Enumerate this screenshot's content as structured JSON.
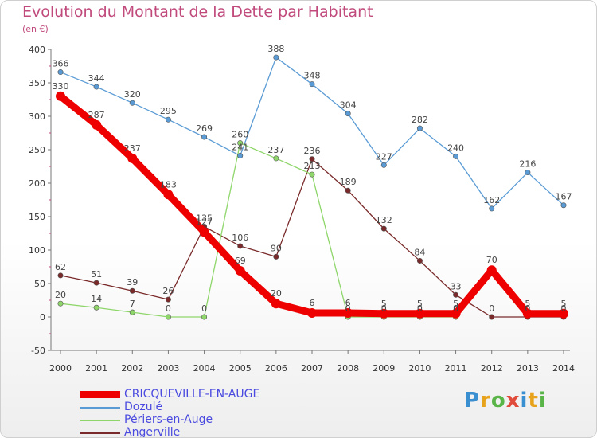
{
  "header": {
    "title": "Evolution du Montant de la Dette par Habitant",
    "subtitle": "(en €)"
  },
  "logo": {
    "text": "Proxiti",
    "colors": [
      "#3a8fd1",
      "#e8a31c",
      "#59b548",
      "#e14b3b",
      "#3a8fd1",
      "#e8a31c",
      "#59b548"
    ]
  },
  "chart_data": {
    "type": "line",
    "title": "Evolution du Montant de la Dette par Habitant",
    "subtitle": "(en €)",
    "x": [
      "2000",
      "2001",
      "2002",
      "2003",
      "2004",
      "2005",
      "2006",
      "2007",
      "2008",
      "2009",
      "2010",
      "2011",
      "2012",
      "2013",
      "2014"
    ],
    "yticks": [
      "-50",
      "0",
      "50",
      "100",
      "150",
      "200",
      "250",
      "300",
      "350",
      "400"
    ],
    "ylim": [
      -50,
      400
    ],
    "grid": false,
    "legend_position": "bottom-left",
    "series": [
      {
        "name": "CRICQUEVILLE-EN-AUGE",
        "color": "#ee0000",
        "values": [
          330,
          287,
          237,
          183,
          127,
          69,
          20,
          6,
          6,
          5,
          5,
          5,
          70,
          5,
          5
        ],
        "labels": [
          "330",
          "287",
          "237",
          "183",
          "127",
          "69",
          "20",
          "6",
          "6",
          "5",
          "5",
          "5",
          "70",
          "5",
          "5"
        ]
      },
      {
        "name": "Dozulé",
        "color": "#5a9bd5",
        "values": [
          366,
          344,
          320,
          295,
          269,
          241,
          388,
          348,
          304,
          227,
          282,
          240,
          162,
          216,
          167
        ],
        "labels": [
          "366",
          "344",
          "320",
          "295",
          "269",
          "241",
          "388",
          "348",
          "304",
          "227",
          "282",
          "240",
          "162",
          "216",
          "167"
        ]
      },
      {
        "name": "Périers-en-Auge",
        "color": "#8ed66a",
        "values": [
          20,
          14,
          7,
          0,
          0,
          260,
          237,
          213,
          0,
          0,
          0,
          0,
          null,
          null,
          null
        ],
        "labels": [
          "20",
          "14",
          "7",
          "0",
          "0",
          "260",
          "237",
          "213",
          "0",
          "0",
          "0",
          "0",
          "",
          "",
          ""
        ]
      },
      {
        "name": "Angerville",
        "color": "#7a2a2a",
        "values": [
          62,
          51,
          39,
          26,
          135,
          106,
          90,
          236,
          189,
          132,
          84,
          33,
          0,
          0,
          0
        ],
        "labels": [
          "62",
          "51",
          "39",
          "26",
          "135",
          "106",
          "90",
          "236",
          "189",
          "132",
          "84",
          "33",
          "0",
          "0",
          "0"
        ]
      }
    ]
  }
}
